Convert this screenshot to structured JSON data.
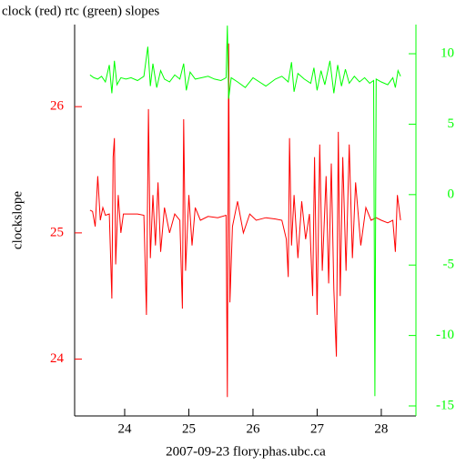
{
  "chart_data": {
    "type": "line",
    "title": "clock (red) rtc (green) slopes",
    "xlabel": "2007-09-23 flory.phas.ubc.ca",
    "ylabel": "clockslope",
    "xlim": [
      23.22,
      28.54
    ],
    "xticks": [
      24,
      25,
      26,
      27,
      28
    ],
    "ylim": [
      23.55,
      26.65
    ],
    "yticks": [
      24,
      25,
      26
    ],
    "ytick_color": "#ff0000",
    "y2lim": [
      -15.71,
      12.07
    ],
    "y2ticks": [
      -15,
      -10,
      -5,
      0,
      5,
      10
    ],
    "y2tick_color": "#00ff00",
    "series": [
      {
        "name": "clock",
        "color": "#ff0000",
        "x": [
          23.46,
          23.5,
          23.54,
          23.58,
          23.62,
          23.66,
          23.7,
          23.76,
          23.8,
          23.82,
          23.84,
          23.86,
          23.9,
          23.94,
          23.98,
          24.1,
          24.2,
          24.3,
          24.34,
          24.37,
          24.4,
          24.44,
          24.48,
          24.52,
          24.56,
          24.62,
          24.7,
          24.78,
          24.86,
          24.9,
          24.92,
          24.95,
          25.0,
          25.05,
          25.1,
          25.18,
          25.3,
          25.45,
          25.58,
          25.6,
          25.62,
          25.64,
          25.68,
          25.76,
          25.85,
          25.95,
          26.05,
          26.2,
          26.35,
          26.45,
          26.52,
          26.55,
          26.57,
          26.6,
          26.64,
          26.7,
          26.76,
          26.82,
          26.88,
          26.93,
          26.96,
          27.0,
          27.04,
          27.08,
          27.14,
          27.18,
          27.22,
          27.26,
          27.3,
          27.33,
          27.36,
          27.4,
          27.45,
          27.5,
          27.55,
          27.6,
          27.68,
          27.76,
          27.84,
          27.92,
          28.0,
          28.1,
          28.18,
          28.22,
          28.25,
          28.3
        ],
        "values": [
          25.18,
          25.17,
          25.05,
          25.45,
          25.1,
          25.2,
          25.14,
          25.15,
          24.48,
          25.6,
          25.75,
          24.75,
          25.3,
          25.0,
          25.15,
          25.15,
          25.15,
          25.14,
          24.35,
          25.98,
          24.8,
          25.3,
          24.9,
          25.4,
          24.85,
          25.2,
          25.0,
          25.15,
          25.1,
          24.4,
          25.9,
          24.7,
          25.3,
          24.9,
          25.2,
          25.1,
          25.13,
          25.12,
          25.14,
          23.7,
          26.5,
          24.45,
          25.05,
          25.25,
          25.0,
          25.15,
          25.1,
          25.12,
          25.11,
          25.1,
          24.95,
          24.65,
          25.75,
          24.9,
          25.3,
          24.8,
          25.25,
          24.95,
          25.15,
          24.5,
          25.6,
          24.35,
          25.7,
          24.7,
          25.45,
          24.6,
          25.55,
          24.55,
          24.02,
          25.8,
          24.5,
          25.6,
          24.7,
          25.7,
          24.8,
          25.4,
          24.9,
          25.2,
          25.1,
          25.12,
          25.1,
          25.08,
          25.1,
          24.85,
          25.3,
          25.1
        ]
      },
      {
        "name": "rtc",
        "color": "#00ff00",
        "axis": "y2",
        "x": [
          23.46,
          23.52,
          23.58,
          23.64,
          23.7,
          23.76,
          23.8,
          23.84,
          23.88,
          23.94,
          24.02,
          24.1,
          24.2,
          24.3,
          24.36,
          24.4,
          24.44,
          24.5,
          24.56,
          24.62,
          24.7,
          24.78,
          24.86,
          24.92,
          24.96,
          25.02,
          25.1,
          25.2,
          25.3,
          25.4,
          25.5,
          25.58,
          25.6,
          25.62,
          25.66,
          25.76,
          25.88,
          26.0,
          26.1,
          26.2,
          26.35,
          26.45,
          26.55,
          26.6,
          26.64,
          26.7,
          26.8,
          26.9,
          26.95,
          27.0,
          27.06,
          27.12,
          27.2,
          27.26,
          27.32,
          27.38,
          27.44,
          27.5,
          27.58,
          27.66,
          27.74,
          27.82,
          27.88,
          27.9,
          27.92,
          28.0,
          28.1,
          28.18,
          28.22,
          28.26,
          28.3
        ],
        "values": [
          8.5,
          8.3,
          8.2,
          8.4,
          8.0,
          9.2,
          7.2,
          9.5,
          7.8,
          8.3,
          8.2,
          8.3,
          8.1,
          8.4,
          10.5,
          7.7,
          9.3,
          7.6,
          8.8,
          8.2,
          8.0,
          8.5,
          8.2,
          9.3,
          7.4,
          8.7,
          8.2,
          8.3,
          8.4,
          8.2,
          8.1,
          8.3,
          12.0,
          6.8,
          8.3,
          8.0,
          7.6,
          8.3,
          8.0,
          7.7,
          8.2,
          8.4,
          8.0,
          9.4,
          7.3,
          8.6,
          8.2,
          7.9,
          9.0,
          7.4,
          8.8,
          7.8,
          9.5,
          7.2,
          9.2,
          7.7,
          8.9,
          7.9,
          8.4,
          8.0,
          8.3,
          7.9,
          8.1,
          -14.3,
          8.2,
          8.0,
          7.8,
          8.3,
          7.6,
          8.8,
          8.4
        ]
      }
    ]
  }
}
